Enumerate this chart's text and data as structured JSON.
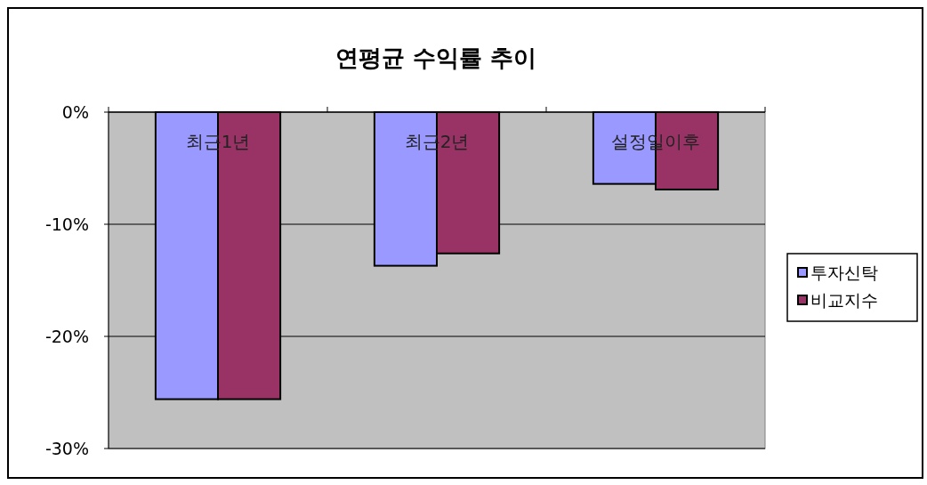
{
  "chart_data": {
    "type": "bar",
    "title": "연평균 수익률 추이",
    "categories": [
      "최근1년",
      "최근2년",
      "설정일이후"
    ],
    "series": [
      {
        "name": "투자신탁",
        "color": "#9999ff",
        "values": [
          -25.6,
          -13.7,
          -6.4
        ]
      },
      {
        "name": "비교지수",
        "color": "#993366",
        "values": [
          -25.6,
          -12.6,
          -6.9
        ]
      }
    ],
    "ylim": [
      -30,
      0
    ],
    "yticks": [
      {
        "value": -30,
        "label": "-30%"
      },
      {
        "value": -20,
        "label": "-20%"
      },
      {
        "value": -10,
        "label": "-10%"
      },
      {
        "value": 0,
        "label": "0%"
      }
    ],
    "grid": "y",
    "legend": "right"
  }
}
